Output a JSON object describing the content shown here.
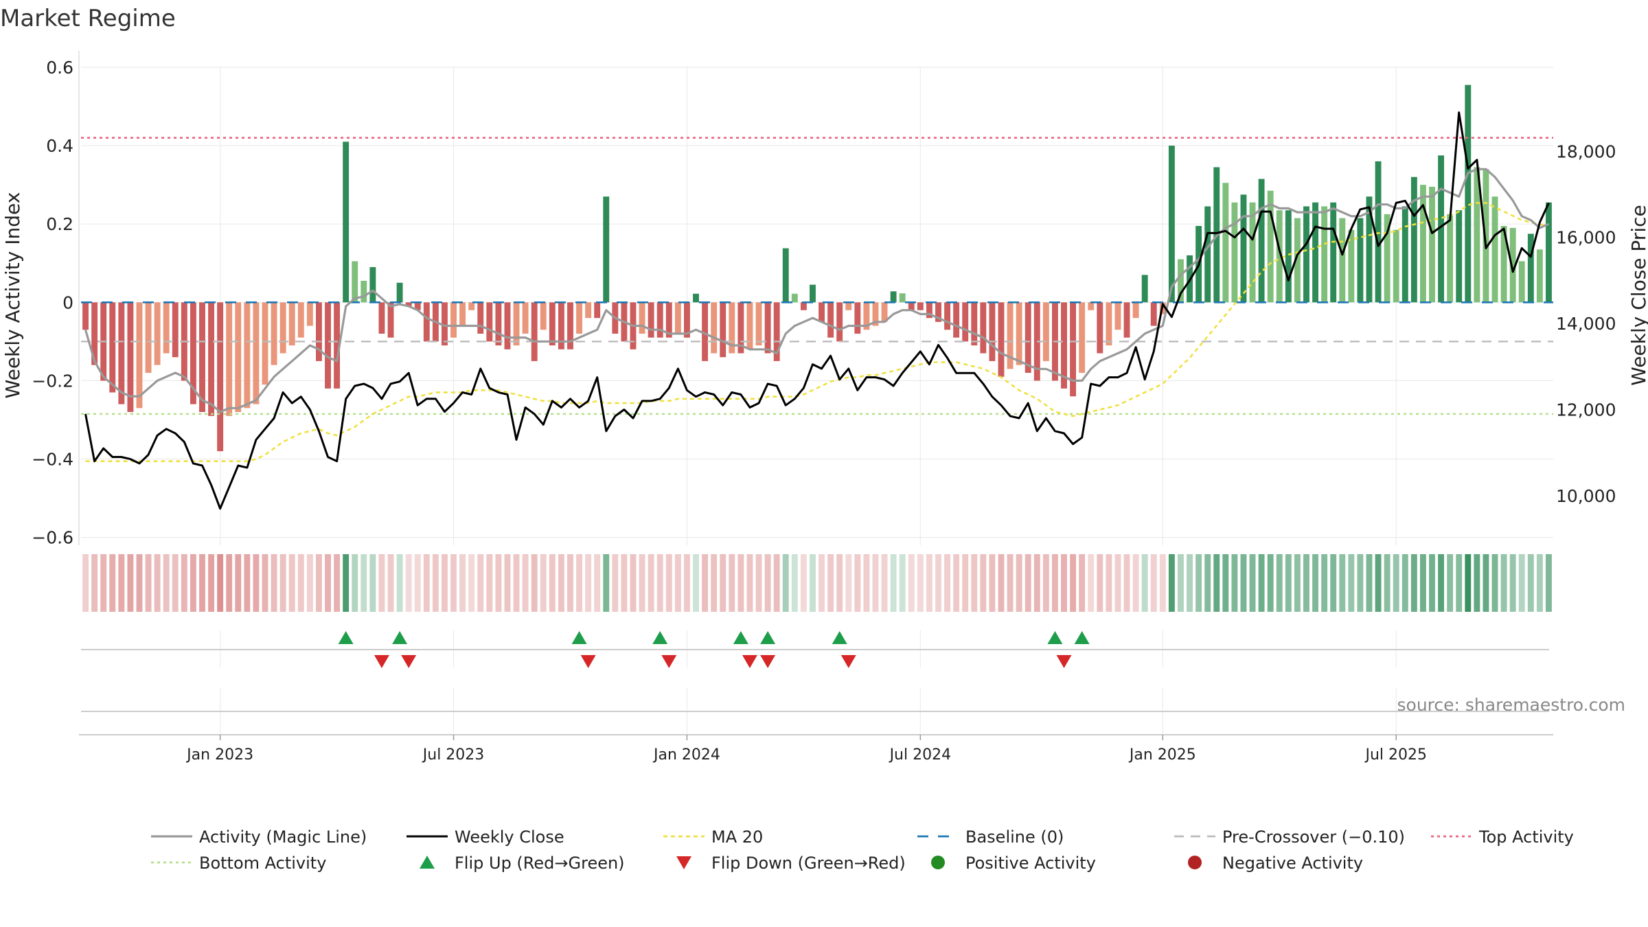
{
  "chart_data": {
    "type": "bar+line",
    "title": "Market Regime",
    "source": "source: sharemaestro.com",
    "y_left_label": "Weekly Activity Index",
    "y_right_label": "Weekly Close Price",
    "y_left_ticks": [
      0.6,
      0.4,
      0.2,
      0,
      -0.2,
      -0.4,
      -0.6
    ],
    "y_left_tick_labels": [
      "0.6",
      "0.4",
      "0.2",
      "0",
      "−0.2",
      "−0.4",
      "−0.6"
    ],
    "y_left_range": [
      -0.62,
      0.6
    ],
    "y_right_ticks": [
      18000,
      16000,
      14000,
      12000,
      10000
    ],
    "y_right_tick_labels": [
      "18,000",
      "16,000",
      "14,000",
      "12,000",
      "10,000"
    ],
    "y_right_range": [
      8850,
      19950
    ],
    "x_ticks": [
      {
        "label": "Jan 2023",
        "week": 15
      },
      {
        "label": "Jul 2023",
        "week": 41
      },
      {
        "label": "Jan 2024",
        "week": 67
      },
      {
        "label": "Jul 2024",
        "week": 93
      },
      {
        "label": "Jan 2025",
        "week": 120
      },
      {
        "label": "Jul 2025",
        "week": 146
      }
    ],
    "reference_lines": {
      "top_activity": 0.42,
      "bottom_activity": -0.285,
      "baseline": 0,
      "pre_crossover": -0.1
    },
    "activity": [
      -0.07,
      -0.16,
      -0.2,
      -0.23,
      -0.26,
      -0.28,
      -0.27,
      -0.18,
      -0.16,
      -0.13,
      -0.14,
      -0.2,
      -0.26,
      -0.28,
      -0.29,
      -0.38,
      -0.29,
      -0.28,
      -0.27,
      -0.26,
      -0.21,
      -0.16,
      -0.13,
      -0.11,
      -0.09,
      -0.06,
      -0.15,
      -0.22,
      -0.22,
      0.41,
      0.105,
      0.055,
      0.09,
      -0.08,
      -0.09,
      0.05,
      -0.01,
      -0.02,
      -0.1,
      -0.1,
      -0.11,
      -0.09,
      -0.06,
      -0.02,
      -0.08,
      -0.1,
      -0.11,
      -0.12,
      -0.11,
      -0.08,
      -0.15,
      -0.07,
      -0.11,
      -0.12,
      -0.12,
      -0.08,
      -0.04,
      -0.04,
      0.27,
      -0.08,
      -0.1,
      -0.12,
      -0.08,
      -0.09,
      -0.09,
      -0.09,
      -0.08,
      -0.09,
      0.022,
      -0.15,
      -0.13,
      -0.14,
      -0.13,
      -0.13,
      -0.12,
      -0.11,
      -0.13,
      -0.15,
      0.138,
      0.022,
      -0.02,
      0.045,
      -0.05,
      -0.09,
      -0.1,
      -0.02,
      -0.08,
      -0.07,
      -0.06,
      -0.05,
      0.028,
      0.023,
      -0.02,
      -0.02,
      -0.04,
      -0.05,
      -0.07,
      -0.09,
      -0.1,
      -0.11,
      -0.13,
      -0.15,
      -0.19,
      -0.17,
      -0.16,
      -0.18,
      -0.2,
      -0.15,
      -0.2,
      -0.22,
      -0.24,
      -0.18,
      -0.02,
      -0.13,
      -0.11,
      -0.07,
      -0.09,
      -0.04,
      0.07,
      -0.06,
      -0.03,
      0.4,
      0.11,
      0.12,
      0.195,
      0.245,
      0.345,
      0.305,
      0.255,
      0.275,
      0.255,
      0.315,
      0.285,
      0.235,
      0.235,
      0.215,
      0.245,
      0.255,
      0.245,
      0.255,
      0.215,
      0.185,
      0.215,
      0.27,
      0.36,
      0.225,
      0.185,
      0.245,
      0.32,
      0.3,
      0.295,
      0.375,
      0.225,
      0.235,
      0.555,
      0.345,
      0.34,
      0.27,
      0.195,
      0.19,
      0.105,
      0.175,
      0.135,
      0.255
    ],
    "activity_line": [
      -0.07,
      -0.15,
      -0.19,
      -0.21,
      -0.23,
      -0.24,
      -0.24,
      -0.22,
      -0.2,
      -0.19,
      -0.18,
      -0.19,
      -0.22,
      -0.25,
      -0.26,
      -0.28,
      -0.27,
      -0.27,
      -0.26,
      -0.25,
      -0.22,
      -0.19,
      -0.17,
      -0.15,
      -0.13,
      -0.11,
      -0.12,
      -0.14,
      -0.15,
      -0.01,
      0.01,
      0.015,
      0.03,
      0.01,
      -0.01,
      -0.005,
      -0.01,
      -0.02,
      -0.04,
      -0.05,
      -0.06,
      -0.06,
      -0.06,
      -0.06,
      -0.06,
      -0.07,
      -0.08,
      -0.09,
      -0.09,
      -0.09,
      -0.1,
      -0.1,
      -0.1,
      -0.1,
      -0.1,
      -0.09,
      -0.08,
      -0.07,
      -0.02,
      -0.04,
      -0.05,
      -0.06,
      -0.06,
      -0.07,
      -0.07,
      -0.08,
      -0.08,
      -0.08,
      -0.07,
      -0.08,
      -0.09,
      -0.1,
      -0.11,
      -0.11,
      -0.12,
      -0.12,
      -0.12,
      -0.13,
      -0.08,
      -0.06,
      -0.05,
      -0.04,
      -0.05,
      -0.06,
      -0.07,
      -0.06,
      -0.06,
      -0.06,
      -0.05,
      -0.05,
      -0.03,
      -0.02,
      -0.02,
      -0.03,
      -0.03,
      -0.04,
      -0.05,
      -0.06,
      -0.07,
      -0.08,
      -0.09,
      -0.11,
      -0.13,
      -0.14,
      -0.15,
      -0.16,
      -0.17,
      -0.17,
      -0.18,
      -0.19,
      -0.2,
      -0.2,
      -0.17,
      -0.15,
      -0.14,
      -0.13,
      -0.12,
      -0.1,
      -0.08,
      -0.07,
      -0.06,
      0.04,
      0.07,
      0.09,
      0.11,
      0.14,
      0.17,
      0.19,
      0.2,
      0.22,
      0.22,
      0.24,
      0.25,
      0.24,
      0.24,
      0.23,
      0.23,
      0.23,
      0.23,
      0.24,
      0.23,
      0.22,
      0.22,
      0.23,
      0.25,
      0.25,
      0.24,
      0.24,
      0.26,
      0.27,
      0.27,
      0.29,
      0.28,
      0.27,
      0.33,
      0.34,
      0.34,
      0.32,
      0.29,
      0.26,
      0.22,
      0.21,
      0.19,
      0.2
    ],
    "weekly_close": [
      11900,
      10800,
      11100,
      10900,
      10900,
      10850,
      10750,
      10950,
      11400,
      11550,
      11450,
      11250,
      10750,
      10700,
      10250,
      9700,
      10200,
      10700,
      10650,
      11300,
      11550,
      11800,
      12400,
      12150,
      12300,
      12000,
      11500,
      10900,
      10800,
      12250,
      12550,
      12600,
      12500,
      12250,
      12600,
      12650,
      12850,
      12100,
      12250,
      12250,
      11950,
      12150,
      12400,
      12350,
      12950,
      12500,
      12400,
      12350,
      11300,
      12050,
      11900,
      11650,
      12200,
      12050,
      12250,
      12050,
      12200,
      12750,
      11500,
      11850,
      12000,
      11800,
      12200,
      12200,
      12250,
      12500,
      12950,
      12450,
      12300,
      12400,
      12350,
      12100,
      12400,
      12350,
      12050,
      12150,
      12600,
      12550,
      12100,
      12250,
      12500,
      13050,
      12950,
      13250,
      12700,
      12950,
      12450,
      12750,
      12750,
      12700,
      12550,
      12850,
      13100,
      13350,
      13050,
      13500,
      13200,
      12850,
      12850,
      12850,
      12600,
      12300,
      12100,
      11850,
      11800,
      12150,
      11500,
      11800,
      11500,
      11450,
      11200,
      11350,
      12600,
      12550,
      12750,
      12750,
      12850,
      13450,
      12700,
      13350,
      14450,
      14150,
      14700,
      15000,
      15350,
      16100,
      16100,
      16150,
      16000,
      16200,
      15950,
      16600,
      16600,
      15700,
      15000,
      15600,
      15850,
      16250,
      16200,
      16200,
      15600,
      16200,
      16650,
      16700,
      15800,
      16100,
      16800,
      16850,
      16500,
      16750,
      16100,
      16250,
      16400,
      18900,
      17600,
      17800,
      15750,
      16050,
      16200,
      15200,
      15750,
      15550,
      16350,
      16800
    ],
    "ma20": [
      10800,
      10800,
      10800,
      10800,
      10800,
      10800,
      10800,
      10800,
      10800,
      10800,
      10800,
      10800,
      10800,
      10800,
      10800,
      10800,
      10800,
      10800,
      10800,
      10850,
      10950,
      11100,
      11250,
      11350,
      11450,
      11500,
      11550,
      11450,
      11400,
      11500,
      11600,
      11750,
      11900,
      12000,
      12100,
      12200,
      12300,
      12300,
      12350,
      12400,
      12400,
      12400,
      12400,
      12450,
      12450,
      12450,
      12450,
      12400,
      12350,
      12300,
      12250,
      12200,
      12200,
      12150,
      12150,
      12150,
      12150,
      12200,
      12150,
      12150,
      12150,
      12150,
      12150,
      12200,
      12200,
      12200,
      12250,
      12250,
      12250,
      12250,
      12250,
      12250,
      12250,
      12250,
      12250,
      12250,
      12300,
      12300,
      12300,
      12300,
      12350,
      12450,
      12550,
      12650,
      12700,
      12750,
      12750,
      12800,
      12800,
      12850,
      12900,
      12950,
      13000,
      13050,
      13100,
      13100,
      13100,
      13100,
      13050,
      13000,
      12950,
      12850,
      12750,
      12600,
      12450,
      12350,
      12250,
      12100,
      11950,
      11900,
      11850,
      11900,
      11950,
      12000,
      12050,
      12100,
      12200,
      12300,
      12400,
      12500,
      12600,
      12800,
      13000,
      13200,
      13450,
      13700,
      13950,
      14200,
      14450,
      14700,
      14950,
      15200,
      15400,
      15500,
      15600,
      15650,
      15700,
      15750,
      15850,
      15900,
      15900,
      15950,
      16000,
      16050,
      16100,
      16100,
      16150,
      16250,
      16300,
      16350,
      16400,
      16450,
      16500,
      16600,
      16750,
      16800,
      16800,
      16700,
      16600,
      16500,
      16400,
      16350,
      16300,
      16300
    ],
    "flip_up_weeks": [
      29,
      35,
      55,
      64,
      73,
      76,
      84,
      108,
      111
    ],
    "flip_down_weeks": [
      33,
      36,
      56,
      65,
      74,
      76,
      85,
      109
    ],
    "legend": [
      "Activity (Magic Line)",
      "Weekly Close",
      "MA 20",
      "Baseline (0)",
      "Pre-Crossover (−0.10)",
      "Top Activity",
      "Bottom Activity",
      "Flip Up (Red→Green)",
      "Flip Down (Green→Red)",
      "Positive Activity",
      "Negative Activity"
    ],
    "colors": {
      "pos_strong": "#2e8b57",
      "pos_light": "#7fbf7b",
      "neg_strong": "#cd5c5c",
      "neg_light": "#e9967a",
      "activity_line": "#999999",
      "close_line": "#000000",
      "ma20": "#f0e040",
      "baseline": "#1f77b4",
      "pre_cross": "#bbbbbb",
      "top": "#e8657f",
      "bottom": "#b5e08a",
      "flip_up": "#1e9e4a",
      "flip_down": "#d62728",
      "pos_marker": "#228b22",
      "neg_marker": "#b22222",
      "text": "#222222",
      "title": "#333333",
      "source": "#888888"
    }
  }
}
